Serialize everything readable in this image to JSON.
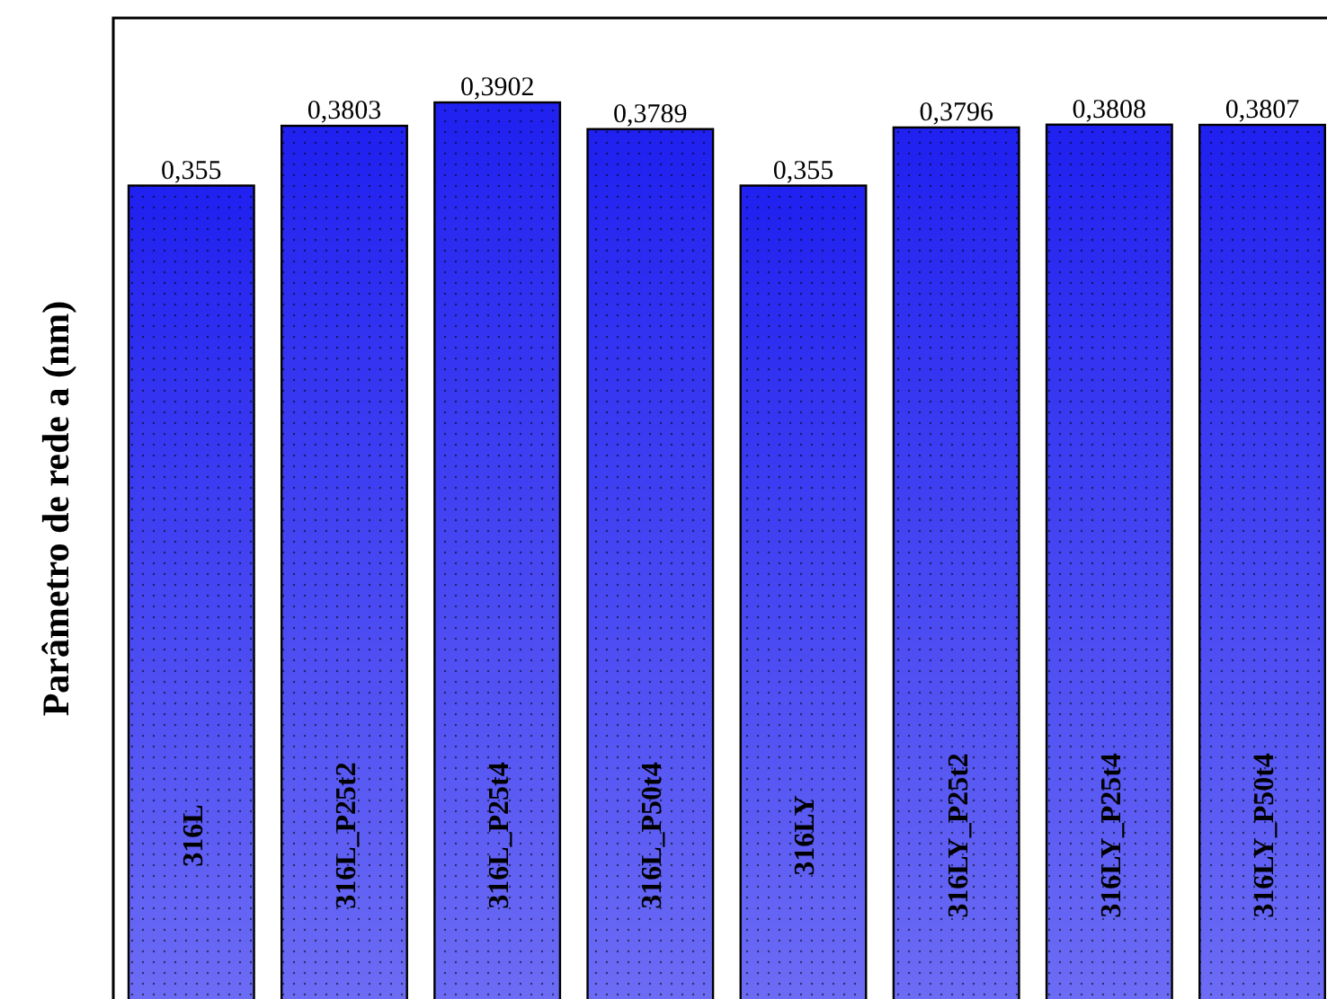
{
  "chart_data": {
    "type": "bar",
    "ylabel": "Parâmetro de rede a (nm)",
    "categories": [
      "316L",
      "316L_P25t2",
      "316L_P25t4",
      "316L_P50t4",
      "316LY",
      "316LY_P25t2",
      "316LY_P25t4",
      "316LY_P50t4"
    ],
    "values": [
      0.355,
      0.3803,
      0.3902,
      0.3789,
      0.355,
      0.3796,
      0.3808,
      0.3807
    ],
    "value_labels": [
      "0,355",
      "0,3803",
      "0,3902",
      "0,3789",
      "0,355",
      "0,3796",
      "0,3808",
      "0,3807"
    ],
    "color": "#2020f0"
  }
}
